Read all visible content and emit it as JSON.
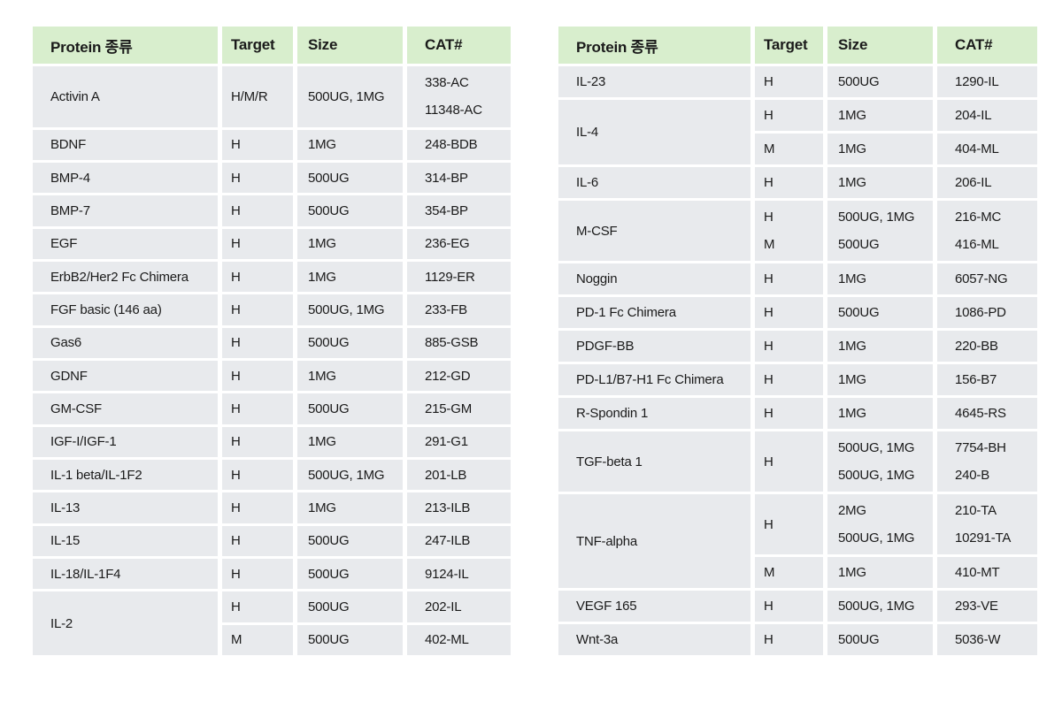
{
  "colors": {
    "page_bg": "#ffffff",
    "header_bg": "#d8eecd",
    "row_bg": "#e8eaed",
    "text": "#1a1a1a"
  },
  "columns": [
    "Protein 종류",
    "Target",
    "Size",
    "CAT#"
  ],
  "left_table": {
    "rows": [
      {
        "protein": "Activin A",
        "subrows": [
          {
            "tall": true,
            "target": [
              "H/M/R"
            ],
            "size": [
              "500UG, 1MG"
            ],
            "cat": [
              "338-AC",
              "11348-AC"
            ]
          }
        ]
      },
      {
        "protein": "BDNF",
        "subrows": [
          {
            "target": [
              "H"
            ],
            "size": [
              "1MG"
            ],
            "cat": [
              "248-BDB"
            ]
          }
        ]
      },
      {
        "protein": "BMP-4",
        "subrows": [
          {
            "target": [
              "H"
            ],
            "size": [
              "500UG"
            ],
            "cat": [
              "314-BP"
            ]
          }
        ]
      },
      {
        "protein": "BMP-7",
        "subrows": [
          {
            "target": [
              "H"
            ],
            "size": [
              "500UG"
            ],
            "cat": [
              "354-BP"
            ]
          }
        ]
      },
      {
        "protein": "EGF",
        "subrows": [
          {
            "target": [
              "H"
            ],
            "size": [
              "1MG"
            ],
            "cat": [
              "236-EG"
            ]
          }
        ]
      },
      {
        "protein": "ErbB2/Her2 Fc Chimera",
        "subrows": [
          {
            "target": [
              "H"
            ],
            "size": [
              "1MG"
            ],
            "cat": [
              "1129-ER"
            ]
          }
        ]
      },
      {
        "protein": "FGF basic (146 aa)",
        "subrows": [
          {
            "target": [
              "H"
            ],
            "size": [
              "500UG, 1MG"
            ],
            "cat": [
              "233-FB"
            ]
          }
        ]
      },
      {
        "protein": "Gas6",
        "subrows": [
          {
            "target": [
              "H"
            ],
            "size": [
              "500UG"
            ],
            "cat": [
              "885-GSB"
            ]
          }
        ]
      },
      {
        "protein": "GDNF",
        "subrows": [
          {
            "target": [
              "H"
            ],
            "size": [
              "1MG"
            ],
            "cat": [
              "212-GD"
            ]
          }
        ]
      },
      {
        "protein": "GM-CSF",
        "subrows": [
          {
            "target": [
              "H"
            ],
            "size": [
              "500UG"
            ],
            "cat": [
              "215-GM"
            ]
          }
        ]
      },
      {
        "protein": "IGF-I/IGF-1",
        "subrows": [
          {
            "target": [
              "H"
            ],
            "size": [
              "1MG"
            ],
            "cat": [
              "291-G1"
            ]
          }
        ]
      },
      {
        "protein": "IL-1 beta/IL-1F2",
        "subrows": [
          {
            "target": [
              "H"
            ],
            "size": [
              "500UG, 1MG"
            ],
            "cat": [
              "201-LB"
            ]
          }
        ]
      },
      {
        "protein": "IL-13",
        "subrows": [
          {
            "target": [
              "H"
            ],
            "size": [
              "1MG"
            ],
            "cat": [
              "213-ILB"
            ]
          }
        ]
      },
      {
        "protein": "IL-15",
        "subrows": [
          {
            "target": [
              "H"
            ],
            "size": [
              "500UG"
            ],
            "cat": [
              "247-ILB"
            ]
          }
        ]
      },
      {
        "protein": "IL-18/IL-1F4",
        "subrows": [
          {
            "target": [
              "H"
            ],
            "size": [
              "500UG"
            ],
            "cat": [
              "9124-IL"
            ]
          }
        ]
      },
      {
        "protein": "IL-2",
        "subrows": [
          {
            "target": [
              "H"
            ],
            "size": [
              "500UG"
            ],
            "cat": [
              "202-IL"
            ]
          },
          {
            "target": [
              "M"
            ],
            "size": [
              "500UG"
            ],
            "cat": [
              "402-ML"
            ]
          }
        ]
      }
    ]
  },
  "right_table": {
    "rows": [
      {
        "protein": "IL-23",
        "subrows": [
          {
            "target": [
              "H"
            ],
            "size": [
              "500UG"
            ],
            "cat": [
              "1290-IL"
            ]
          }
        ]
      },
      {
        "protein": "IL-4",
        "subrows": [
          {
            "target": [
              "H"
            ],
            "size": [
              "1MG"
            ],
            "cat": [
              "204-IL"
            ]
          },
          {
            "target": [
              "M"
            ],
            "size": [
              "1MG"
            ],
            "cat": [
              "404-ML"
            ]
          }
        ]
      },
      {
        "protein": "IL-6",
        "subrows": [
          {
            "target": [
              "H"
            ],
            "size": [
              "1MG"
            ],
            "cat": [
              "206-IL"
            ]
          }
        ]
      },
      {
        "protein": "M-CSF",
        "subrows": [
          {
            "tall": true,
            "target": [
              "H",
              "M"
            ],
            "size": [
              "500UG, 1MG",
              "500UG"
            ],
            "cat": [
              "216-MC",
              "416-ML"
            ]
          }
        ]
      },
      {
        "protein": "Noggin",
        "subrows": [
          {
            "target": [
              "H"
            ],
            "size": [
              "1MG"
            ],
            "cat": [
              "6057-NG"
            ]
          }
        ]
      },
      {
        "protein": "PD-1 Fc Chimera",
        "subrows": [
          {
            "target": [
              "H"
            ],
            "size": [
              "500UG"
            ],
            "cat": [
              "1086-PD"
            ]
          }
        ]
      },
      {
        "protein": "PDGF-BB",
        "subrows": [
          {
            "target": [
              "H"
            ],
            "size": [
              "1MG"
            ],
            "cat": [
              "220-BB"
            ]
          }
        ]
      },
      {
        "protein": "PD-L1/B7-H1 Fc Chimera",
        "subrows": [
          {
            "target": [
              "H"
            ],
            "size": [
              "1MG"
            ],
            "cat": [
              "156-B7"
            ]
          }
        ]
      },
      {
        "protein": "R-Spondin 1",
        "subrows": [
          {
            "target": [
              "H"
            ],
            "size": [
              "1MG"
            ],
            "cat": [
              "4645-RS"
            ]
          }
        ]
      },
      {
        "protein": "TGF-beta 1",
        "subrows": [
          {
            "tall": true,
            "target": [
              "H"
            ],
            "size": [
              "500UG, 1MG",
              "500UG, 1MG"
            ],
            "cat": [
              "7754-BH",
              "240-B"
            ]
          }
        ]
      },
      {
        "protein": "TNF-alpha",
        "subrows": [
          {
            "tall": true,
            "target": [
              "H"
            ],
            "size": [
              "2MG",
              "500UG, 1MG"
            ],
            "cat": [
              "210-TA",
              "10291-TA"
            ]
          },
          {
            "target": [
              "M"
            ],
            "size": [
              "1MG"
            ],
            "cat": [
              "410-MT"
            ]
          }
        ]
      },
      {
        "protein": "VEGF 165",
        "subrows": [
          {
            "target": [
              "H"
            ],
            "size": [
              "500UG, 1MG"
            ],
            "cat": [
              "293-VE"
            ]
          }
        ]
      },
      {
        "protein": "Wnt-3a",
        "subrows": [
          {
            "target": [
              "H"
            ],
            "size": [
              "500UG"
            ],
            "cat": [
              "5036-W"
            ]
          }
        ]
      }
    ]
  }
}
